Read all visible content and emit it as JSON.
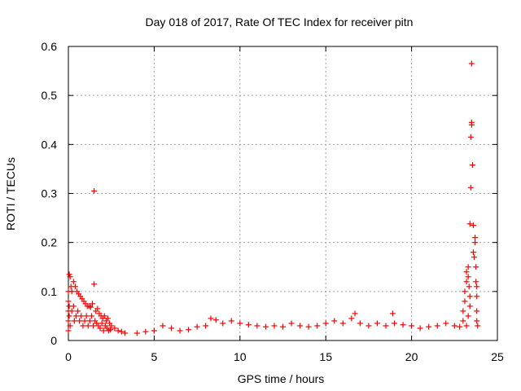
{
  "chart_data": {
    "type": "scatter",
    "title": "Day 018 of 2017, Rate Of TEC Index for receiver pitn",
    "xlabel": "GPS time / hours",
    "ylabel": "ROTI / TECUs",
    "xlim": [
      0,
      25
    ],
    "ylim": [
      0,
      0.6
    ],
    "xticks": [
      0,
      5,
      10,
      15,
      20,
      25
    ],
    "xtick_labels": [
      "0",
      "5",
      "10",
      "15",
      "20",
      "25"
    ],
    "yticks": [
      0,
      0.1,
      0.2,
      0.3,
      0.4,
      0.5,
      0.6
    ],
    "ytick_labels": [
      "0",
      "0.1",
      "0.2",
      "0.3",
      "0.4",
      "0.5",
      "0.6"
    ],
    "grid": true,
    "marker": "+",
    "color": "#ff0000",
    "series": [
      {
        "points": [
          [
            0.05,
            0.135
          ],
          [
            0.1,
            0.13
          ],
          [
            0.15,
            0.11
          ],
          [
            0.2,
            0.1
          ],
          [
            0.3,
            0.12
          ],
          [
            0.4,
            0.11
          ],
          [
            0.5,
            0.1
          ],
          [
            0.6,
            0.095
          ],
          [
            0.7,
            0.09
          ],
          [
            0.8,
            0.085
          ],
          [
            0.9,
            0.08
          ],
          [
            1.0,
            0.075
          ],
          [
            1.1,
            0.07
          ],
          [
            1.2,
            0.07
          ],
          [
            1.3,
            0.068
          ],
          [
            1.4,
            0.075
          ],
          [
            1.5,
            0.115
          ],
          [
            1.5,
            0.305
          ],
          [
            1.6,
            0.06
          ],
          [
            1.7,
            0.065
          ],
          [
            1.8,
            0.055
          ],
          [
            1.9,
            0.05
          ],
          [
            2.0,
            0.045
          ],
          [
            2.1,
            0.05
          ],
          [
            2.2,
            0.04
          ],
          [
            2.3,
            0.045
          ],
          [
            2.4,
            0.035
          ],
          [
            2.5,
            0.03
          ],
          [
            2.7,
            0.025
          ],
          [
            2.9,
            0.02
          ],
          [
            3.1,
            0.018
          ],
          [
            3.3,
            0.015
          ],
          [
            0.0,
            0.02
          ],
          [
            0.0,
            0.04
          ],
          [
            0.0,
            0.06
          ],
          [
            0.0,
            0.08
          ],
          [
            0.0,
            0.1
          ],
          [
            0.05,
            0.05
          ],
          [
            0.05,
            0.07
          ],
          [
            0.1,
            0.03
          ],
          [
            0.2,
            0.06
          ],
          [
            0.3,
            0.07
          ],
          [
            0.35,
            0.04
          ],
          [
            0.45,
            0.05
          ],
          [
            0.55,
            0.06
          ],
          [
            0.65,
            0.04
          ],
          [
            0.75,
            0.05
          ],
          [
            0.85,
            0.03
          ],
          [
            0.95,
            0.04
          ],
          [
            1.05,
            0.05
          ],
          [
            1.15,
            0.03
          ],
          [
            1.25,
            0.04
          ],
          [
            1.35,
            0.05
          ],
          [
            1.45,
            0.03
          ],
          [
            1.55,
            0.04
          ],
          [
            1.65,
            0.035
          ],
          [
            1.75,
            0.03
          ],
          [
            1.85,
            0.025
          ],
          [
            1.95,
            0.035
          ],
          [
            2.05,
            0.02
          ],
          [
            2.15,
            0.03
          ],
          [
            2.25,
            0.025
          ],
          [
            2.35,
            0.02
          ],
          [
            2.45,
            0.022
          ],
          [
            4.0,
            0.015
          ],
          [
            4.5,
            0.018
          ],
          [
            5.0,
            0.02
          ],
          [
            5.5,
            0.03
          ],
          [
            6.0,
            0.025
          ],
          [
            6.5,
            0.02
          ],
          [
            7.0,
            0.022
          ],
          [
            7.5,
            0.028
          ],
          [
            8.0,
            0.03
          ],
          [
            8.3,
            0.045
          ],
          [
            8.6,
            0.042
          ],
          [
            9.0,
            0.035
          ],
          [
            9.5,
            0.04
          ],
          [
            10.0,
            0.035
          ],
          [
            10.5,
            0.032
          ],
          [
            11.0,
            0.03
          ],
          [
            11.5,
            0.028
          ],
          [
            12.0,
            0.03
          ],
          [
            12.5,
            0.028
          ],
          [
            13.0,
            0.035
          ],
          [
            13.5,
            0.03
          ],
          [
            14.0,
            0.028
          ],
          [
            14.5,
            0.03
          ],
          [
            15.0,
            0.035
          ],
          [
            15.5,
            0.04
          ],
          [
            16.0,
            0.035
          ],
          [
            16.5,
            0.045
          ],
          [
            16.7,
            0.055
          ],
          [
            17.0,
            0.035
          ],
          [
            17.5,
            0.03
          ],
          [
            18.0,
            0.035
          ],
          [
            18.5,
            0.03
          ],
          [
            18.9,
            0.055
          ],
          [
            19.0,
            0.035
          ],
          [
            19.5,
            0.032
          ],
          [
            20.0,
            0.03
          ],
          [
            20.5,
            0.025
          ],
          [
            21.0,
            0.028
          ],
          [
            21.5,
            0.03
          ],
          [
            22.0,
            0.035
          ],
          [
            22.5,
            0.03
          ],
          [
            22.8,
            0.028
          ],
          [
            23.0,
            0.04
          ],
          [
            23.0,
            0.06
          ],
          [
            23.1,
            0.08
          ],
          [
            23.1,
            0.1
          ],
          [
            23.2,
            0.12
          ],
          [
            23.2,
            0.14
          ],
          [
            23.3,
            0.15
          ],
          [
            23.3,
            0.13
          ],
          [
            23.35,
            0.11
          ],
          [
            23.4,
            0.09
          ],
          [
            23.4,
            0.238
          ],
          [
            23.45,
            0.312
          ],
          [
            23.45,
            0.415
          ],
          [
            23.5,
            0.44
          ],
          [
            23.5,
            0.445
          ],
          [
            23.5,
            0.565
          ],
          [
            23.55,
            0.358
          ],
          [
            23.6,
            0.235
          ],
          [
            23.6,
            0.18
          ],
          [
            23.65,
            0.17
          ],
          [
            23.7,
            0.2
          ],
          [
            23.7,
            0.21
          ],
          [
            23.75,
            0.15
          ],
          [
            23.75,
            0.12
          ],
          [
            23.8,
            0.11
          ],
          [
            23.8,
            0.09
          ],
          [
            23.8,
            0.06
          ],
          [
            23.8,
            0.04
          ],
          [
            23.85,
            0.03
          ],
          [
            23.4,
            0.07
          ],
          [
            23.3,
            0.05
          ],
          [
            23.2,
            0.03
          ]
        ]
      }
    ]
  }
}
